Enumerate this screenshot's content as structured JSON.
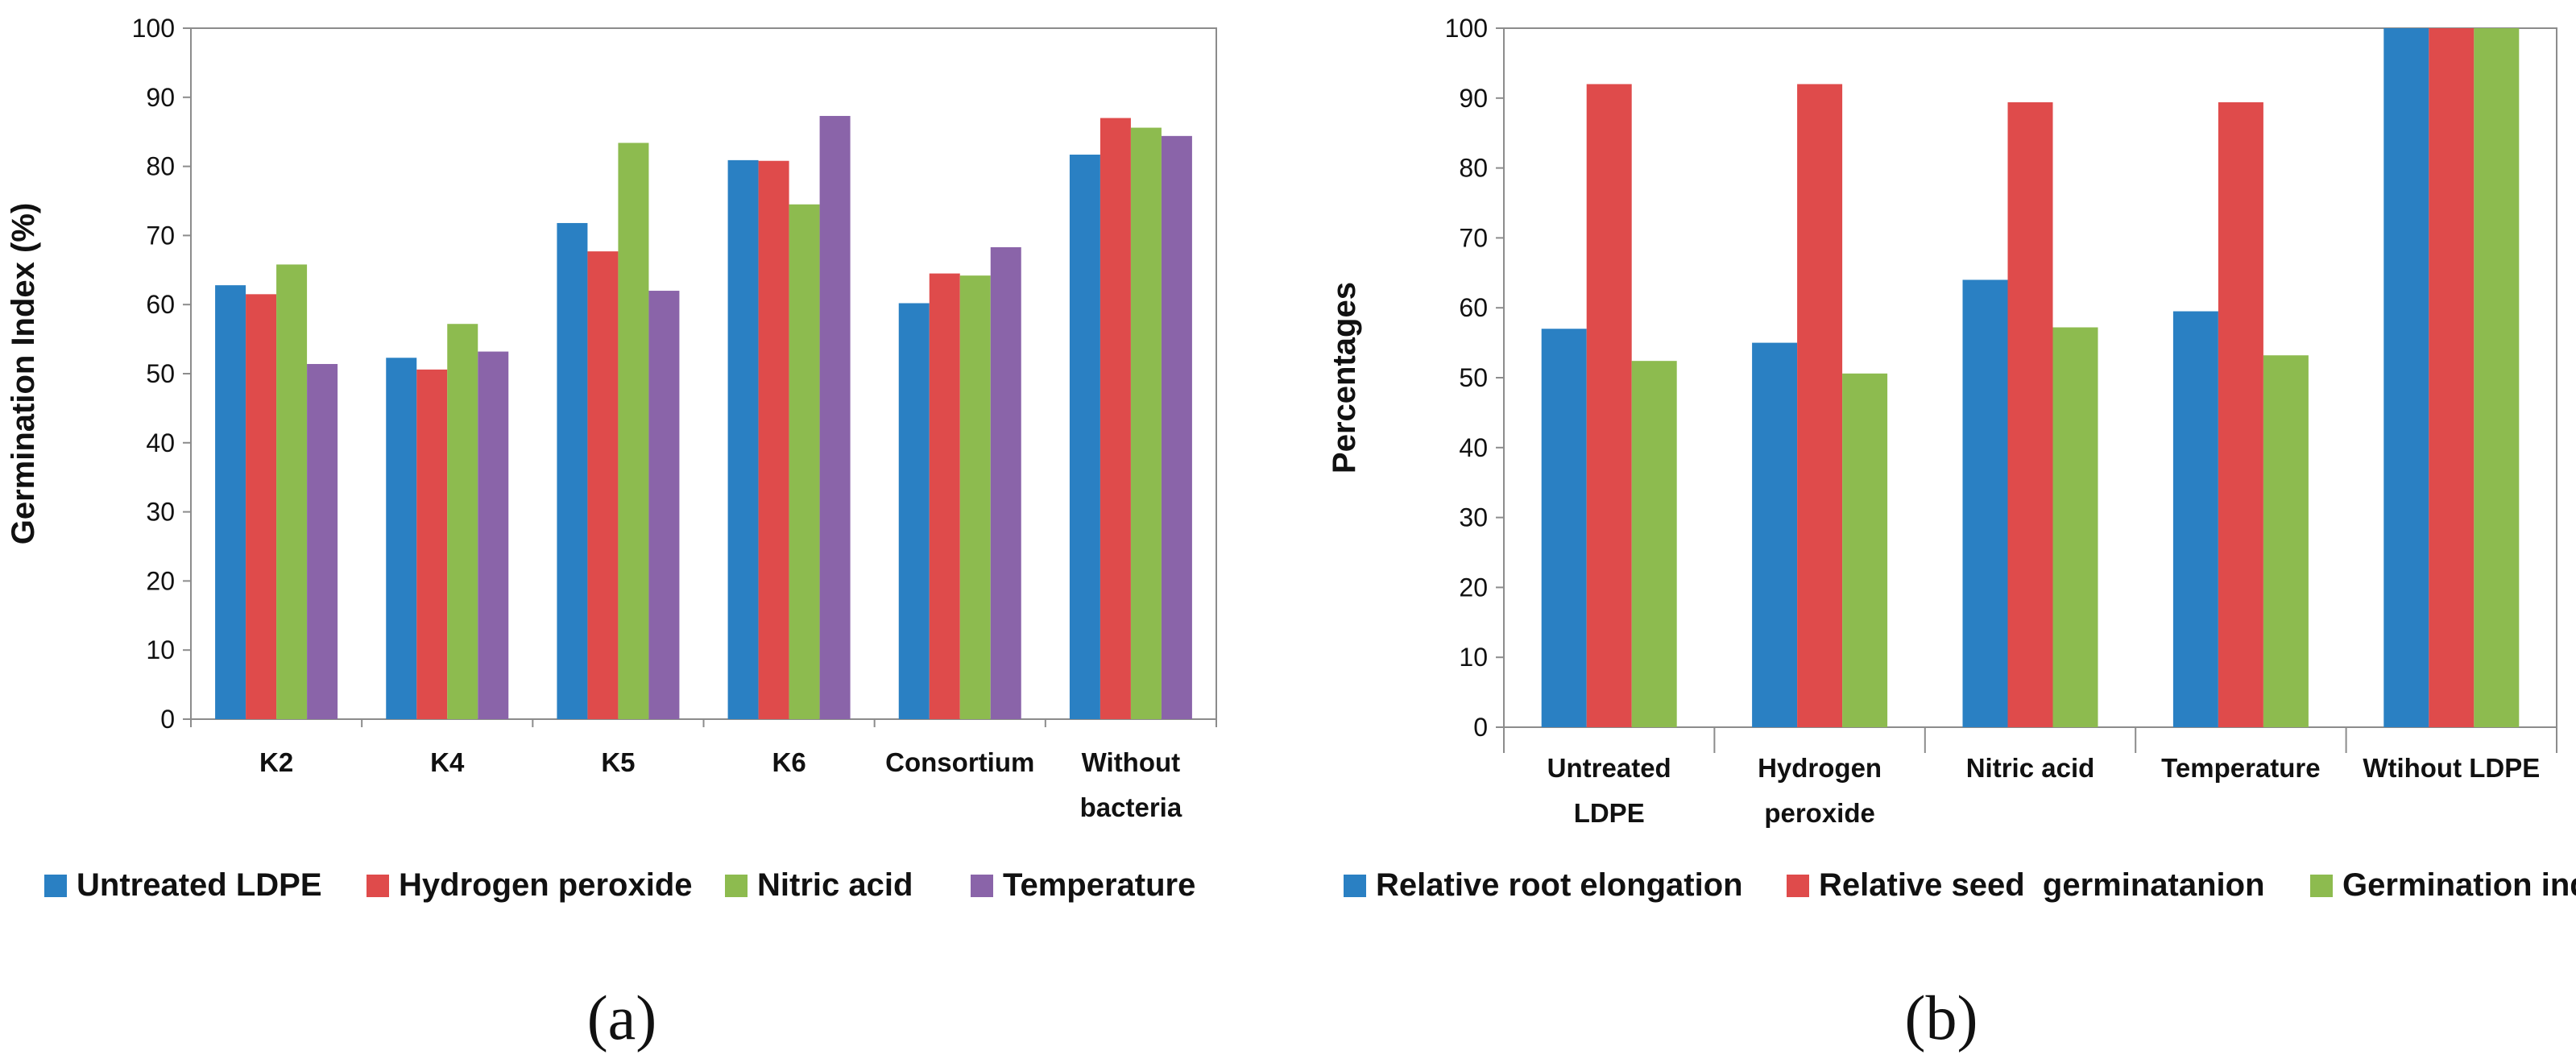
{
  "chart_data": [
    {
      "type": "bar",
      "panel_label": "(a)",
      "categories": [
        "K2",
        "K4",
        "K5",
        "K6",
        "Consortium",
        "Without bacteria"
      ],
      "category_lines": [
        [
          "K2"
        ],
        [
          "K4"
        ],
        [
          "K5"
        ],
        [
          "K6"
        ],
        [
          "Consortium"
        ],
        [
          "Without",
          "bacteria"
        ]
      ],
      "series": [
        {
          "name": "Untreated LDPE",
          "color": "#2A80C3",
          "values": [
            62.8,
            52.3,
            71.8,
            80.9,
            60.2,
            81.7
          ]
        },
        {
          "name": "Hydrogen peroxide",
          "color": "#DF4B4B",
          "values": [
            61.5,
            50.6,
            67.7,
            80.8,
            64.5,
            87.0
          ]
        },
        {
          "name": "Nitric acid",
          "color": "#8DBB4F",
          "values": [
            65.8,
            57.2,
            83.4,
            74.5,
            64.2,
            85.6
          ]
        },
        {
          "name": "Temperature",
          "color": "#8A64A9",
          "values": [
            51.4,
            53.2,
            62.0,
            87.3,
            68.3,
            84.4
          ]
        }
      ],
      "title": "",
      "xlabel": "",
      "ylabel": "Germination Index (%)",
      "ylim": [
        0,
        100
      ],
      "yticks": [
        0,
        10,
        20,
        30,
        40,
        50,
        60,
        70,
        80,
        90,
        100
      ],
      "legend": "bottom"
    },
    {
      "type": "bar",
      "panel_label": "(b)",
      "categories": [
        "Untreated LDPE",
        "Hydrogen peroxide",
        "Nitric acid",
        "Temperature",
        "Wtihout LDPE"
      ],
      "category_lines": [
        [
          "Untreated",
          "LDPE"
        ],
        [
          "Hydrogen",
          "peroxide"
        ],
        [
          "Nitric acid"
        ],
        [
          "Temperature"
        ],
        [
          "Wtihout LDPE"
        ]
      ],
      "series": [
        {
          "name": "Relative root elongation",
          "color": "#2A80C3",
          "values": [
            57.0,
            55.0,
            64.0,
            59.5,
            100
          ]
        },
        {
          "name": "Relative seed  germinatanion",
          "color": "#DF4B4B",
          "values": [
            92.0,
            92.0,
            89.4,
            89.4,
            100
          ]
        },
        {
          "name": "Germination index",
          "color": "#8DBB4F",
          "values": [
            52.4,
            50.6,
            57.2,
            53.2,
            100
          ]
        }
      ],
      "title": "",
      "xlabel": "",
      "ylabel": "Percentages",
      "ylim": [
        0,
        100
      ],
      "yticks": [
        0,
        10,
        20,
        30,
        40,
        50,
        60,
        70,
        80,
        90,
        100
      ],
      "legend": "bottom"
    }
  ]
}
